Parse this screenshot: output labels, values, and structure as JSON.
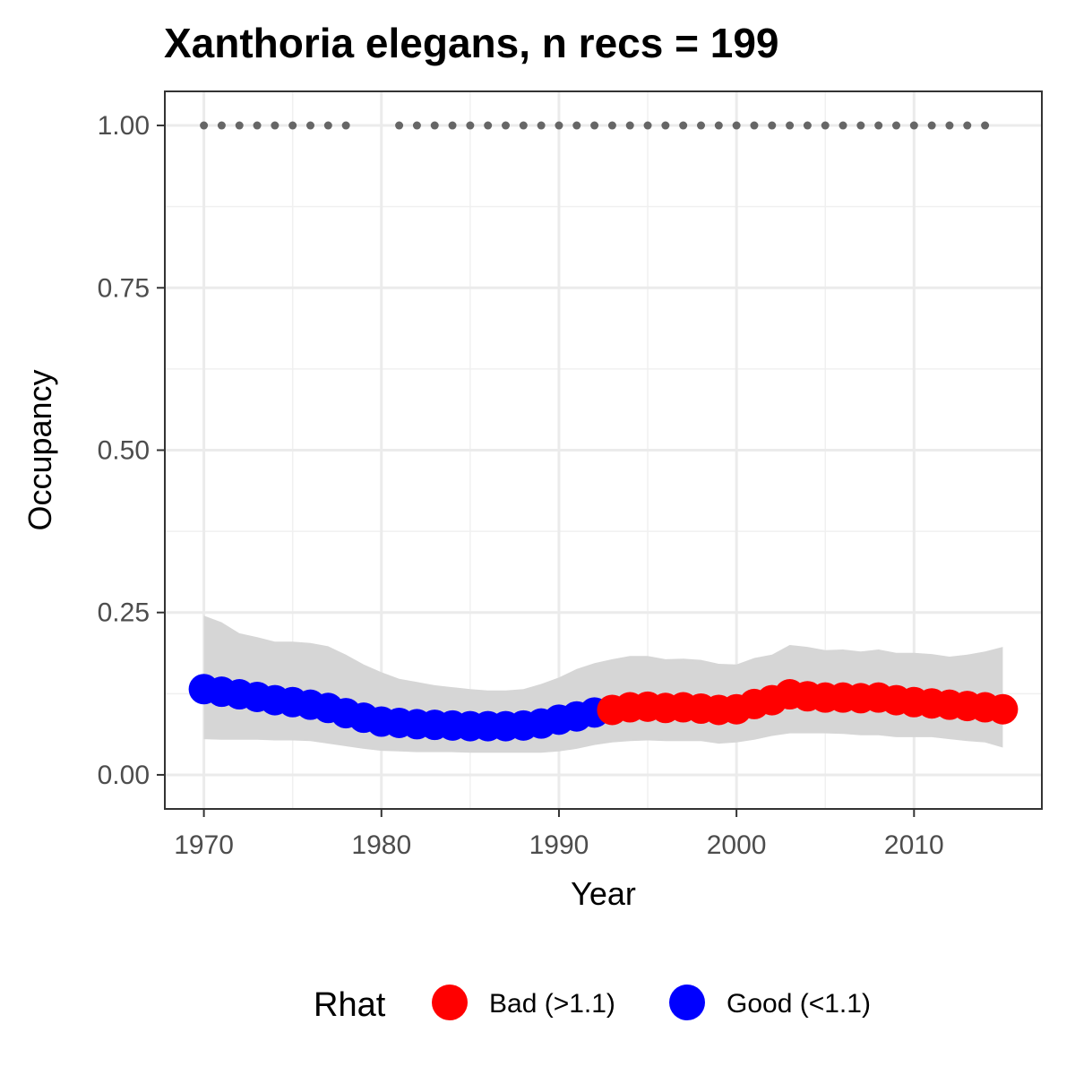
{
  "chart_data": {
    "type": "line",
    "title": "Xanthoria elegans, n recs = 199",
    "xlabel": "Year",
    "ylabel": "Occupancy",
    "xlim": [
      1967.8,
      2017.2
    ],
    "ylim": [
      -0.0525,
      1.0525
    ],
    "x_ticks": [
      1970,
      1980,
      1990,
      2000,
      2010
    ],
    "x_tick_labels": [
      "1970",
      "1980",
      "1990",
      "2000",
      "2010"
    ],
    "y_ticks": [
      0,
      0.25,
      0.5,
      0.75,
      1.0
    ],
    "y_tick_labels": [
      "0.00",
      "0.25",
      "0.50",
      "0.75",
      "1.00"
    ],
    "grid": true,
    "legend_position": "bottom",
    "legend": {
      "title": "Rhat",
      "entries": [
        {
          "label": "Bad (>1.1)",
          "color": "#ff0000"
        },
        {
          "label": "Good (<1.1)",
          "color": "#0000ff"
        }
      ]
    },
    "colors": {
      "bad": "#ff0000",
      "good": "#0000ff",
      "ribbon": "#d6d6d6",
      "records": "#666666"
    },
    "years": [
      1970,
      1971,
      1972,
      1973,
      1974,
      1975,
      1976,
      1977,
      1978,
      1979,
      1980,
      1981,
      1982,
      1983,
      1984,
      1985,
      1986,
      1987,
      1988,
      1989,
      1990,
      1991,
      1992,
      1993,
      1994,
      1995,
      1996,
      1997,
      1998,
      1999,
      2000,
      2001,
      2002,
      2003,
      2004,
      2005,
      2006,
      2007,
      2008,
      2009,
      2010,
      2011,
      2012,
      2013,
      2014,
      2015
    ],
    "series": [
      {
        "name": "Occupancy",
        "values": [
          0.132,
          0.128,
          0.124,
          0.12,
          0.115,
          0.112,
          0.108,
          0.103,
          0.095,
          0.088,
          0.082,
          0.08,
          0.078,
          0.077,
          0.076,
          0.075,
          0.075,
          0.075,
          0.076,
          0.079,
          0.085,
          0.09,
          0.096,
          0.1,
          0.104,
          0.105,
          0.103,
          0.104,
          0.102,
          0.1,
          0.101,
          0.109,
          0.115,
          0.124,
          0.121,
          0.119,
          0.119,
          0.118,
          0.119,
          0.115,
          0.112,
          0.11,
          0.108,
          0.106,
          0.104,
          0.101
        ],
        "rhat_class": [
          "good",
          "good",
          "good",
          "good",
          "good",
          "good",
          "good",
          "good",
          "good",
          "good",
          "good",
          "good",
          "good",
          "good",
          "good",
          "good",
          "good",
          "good",
          "good",
          "good",
          "good",
          "good",
          "good",
          "bad",
          "bad",
          "bad",
          "bad",
          "bad",
          "bad",
          "bad",
          "bad",
          "bad",
          "bad",
          "bad",
          "bad",
          "bad",
          "bad",
          "bad",
          "bad",
          "bad",
          "bad",
          "bad",
          "bad",
          "bad",
          "bad",
          "bad"
        ]
      }
    ],
    "ribbon_upper": [
      0.245,
      0.235,
      0.218,
      0.212,
      0.205,
      0.205,
      0.203,
      0.198,
      0.185,
      0.17,
      0.158,
      0.148,
      0.143,
      0.138,
      0.135,
      0.132,
      0.13,
      0.13,
      0.132,
      0.14,
      0.15,
      0.163,
      0.172,
      0.178,
      0.183,
      0.183,
      0.178,
      0.179,
      0.177,
      0.171,
      0.17,
      0.18,
      0.185,
      0.2,
      0.197,
      0.192,
      0.193,
      0.19,
      0.193,
      0.188,
      0.188,
      0.186,
      0.182,
      0.185,
      0.19,
      0.197
    ],
    "ribbon_lower": [
      0.055,
      0.054,
      0.054,
      0.054,
      0.053,
      0.053,
      0.052,
      0.048,
      0.044,
      0.04,
      0.037,
      0.036,
      0.035,
      0.035,
      0.035,
      0.034,
      0.034,
      0.034,
      0.034,
      0.034,
      0.036,
      0.04,
      0.046,
      0.05,
      0.052,
      0.053,
      0.052,
      0.052,
      0.052,
      0.048,
      0.05,
      0.054,
      0.06,
      0.064,
      0.064,
      0.064,
      0.063,
      0.061,
      0.061,
      0.058,
      0.058,
      0.058,
      0.055,
      0.052,
      0.05,
      0.042
    ],
    "record_years": [
      1970,
      1971,
      1972,
      1973,
      1974,
      1975,
      1976,
      1977,
      1978,
      1981,
      1982,
      1983,
      1984,
      1985,
      1986,
      1987,
      1988,
      1989,
      1990,
      1991,
      1992,
      1993,
      1994,
      1995,
      1996,
      1997,
      1998,
      1999,
      2000,
      2001,
      2002,
      2003,
      2004,
      2005,
      2006,
      2007,
      2008,
      2009,
      2010,
      2011,
      2012,
      2013,
      2014
    ],
    "record_value": 1.0
  }
}
